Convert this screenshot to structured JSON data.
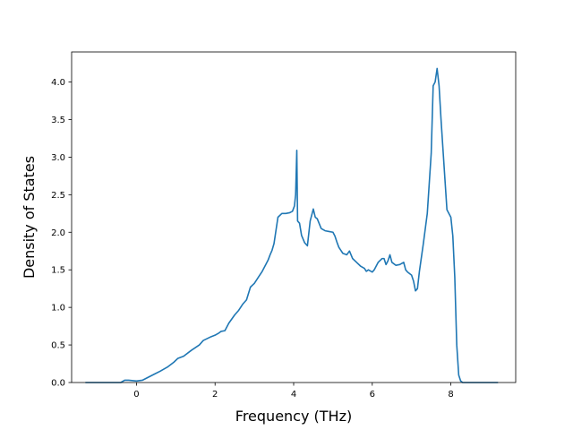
{
  "chart_data": {
    "type": "line",
    "xlabel": "Frequency (THz)",
    "ylabel": "Density of States",
    "xlim": [
      -1.65,
      9.65
    ],
    "ylim": [
      0.0,
      4.4
    ],
    "x_ticks": [
      0,
      2,
      4,
      6,
      8
    ],
    "y_ticks": [
      0.0,
      0.5,
      1.0,
      1.5,
      2.0,
      2.5,
      3.0,
      3.5,
      4.0
    ],
    "x_tick_labels": [
      "0",
      "2",
      "4",
      "6",
      "8"
    ],
    "y_tick_labels": [
      "0.0",
      "0.5",
      "1.0",
      "1.5",
      "2.0",
      "2.5",
      "3.0",
      "3.5",
      "4.0"
    ],
    "grid": false,
    "series": [
      {
        "color": "#1f77b4",
        "x": [
          -1.3,
          -0.4,
          -0.3,
          -0.2,
          0.0,
          0.15,
          0.3,
          0.45,
          0.6,
          0.8,
          0.95,
          1.05,
          1.2,
          1.4,
          1.6,
          1.7,
          1.9,
          2.0,
          2.1,
          2.15,
          2.25,
          2.35,
          2.5,
          2.6,
          2.7,
          2.8,
          2.9,
          3.0,
          3.1,
          3.2,
          3.3,
          3.35,
          3.4,
          3.45,
          3.5,
          3.6,
          3.7,
          3.8,
          3.9,
          3.97,
          4.02,
          4.05,
          4.08,
          4.1,
          4.15,
          4.2,
          4.28,
          4.35,
          4.42,
          4.5,
          4.55,
          4.6,
          4.7,
          4.8,
          4.9,
          5.0,
          5.05,
          5.1,
          5.15,
          5.25,
          5.35,
          5.42,
          5.5,
          5.6,
          5.7,
          5.8,
          5.85,
          5.9,
          6.0,
          6.05,
          6.15,
          6.25,
          6.3,
          6.35,
          6.4,
          6.45,
          6.5,
          6.6,
          6.7,
          6.8,
          6.85,
          6.9,
          7.0,
          7.05,
          7.1,
          7.15,
          7.2,
          7.3,
          7.4,
          7.5,
          7.55,
          7.6,
          7.65,
          7.7,
          7.75,
          7.8,
          7.85,
          7.9,
          8.0,
          8.05,
          8.1,
          8.15,
          8.2,
          8.25,
          8.3,
          8.35,
          8.4,
          9.2
        ],
        "y": [
          0.0,
          0.0,
          0.03,
          0.03,
          0.02,
          0.03,
          0.07,
          0.11,
          0.15,
          0.21,
          0.27,
          0.32,
          0.35,
          0.43,
          0.5,
          0.56,
          0.61,
          0.63,
          0.66,
          0.68,
          0.69,
          0.79,
          0.9,
          0.96,
          1.04,
          1.1,
          1.27,
          1.32,
          1.4,
          1.48,
          1.58,
          1.63,
          1.7,
          1.76,
          1.85,
          2.2,
          2.25,
          2.25,
          2.26,
          2.28,
          2.35,
          2.5,
          3.09,
          2.15,
          2.12,
          1.96,
          1.86,
          1.82,
          2.15,
          2.31,
          2.2,
          2.18,
          2.05,
          2.02,
          2.01,
          2.0,
          1.95,
          1.87,
          1.8,
          1.72,
          1.7,
          1.75,
          1.65,
          1.6,
          1.55,
          1.52,
          1.48,
          1.5,
          1.47,
          1.5,
          1.6,
          1.65,
          1.65,
          1.57,
          1.62,
          1.7,
          1.6,
          1.56,
          1.57,
          1.6,
          1.5,
          1.47,
          1.43,
          1.35,
          1.22,
          1.25,
          1.48,
          1.85,
          2.25,
          3.05,
          3.95,
          4.0,
          4.18,
          3.95,
          3.5,
          3.1,
          2.7,
          2.3,
          2.2,
          1.95,
          1.4,
          0.5,
          0.1,
          0.02,
          0.0,
          0.0,
          0.0,
          0.0
        ]
      }
    ]
  }
}
